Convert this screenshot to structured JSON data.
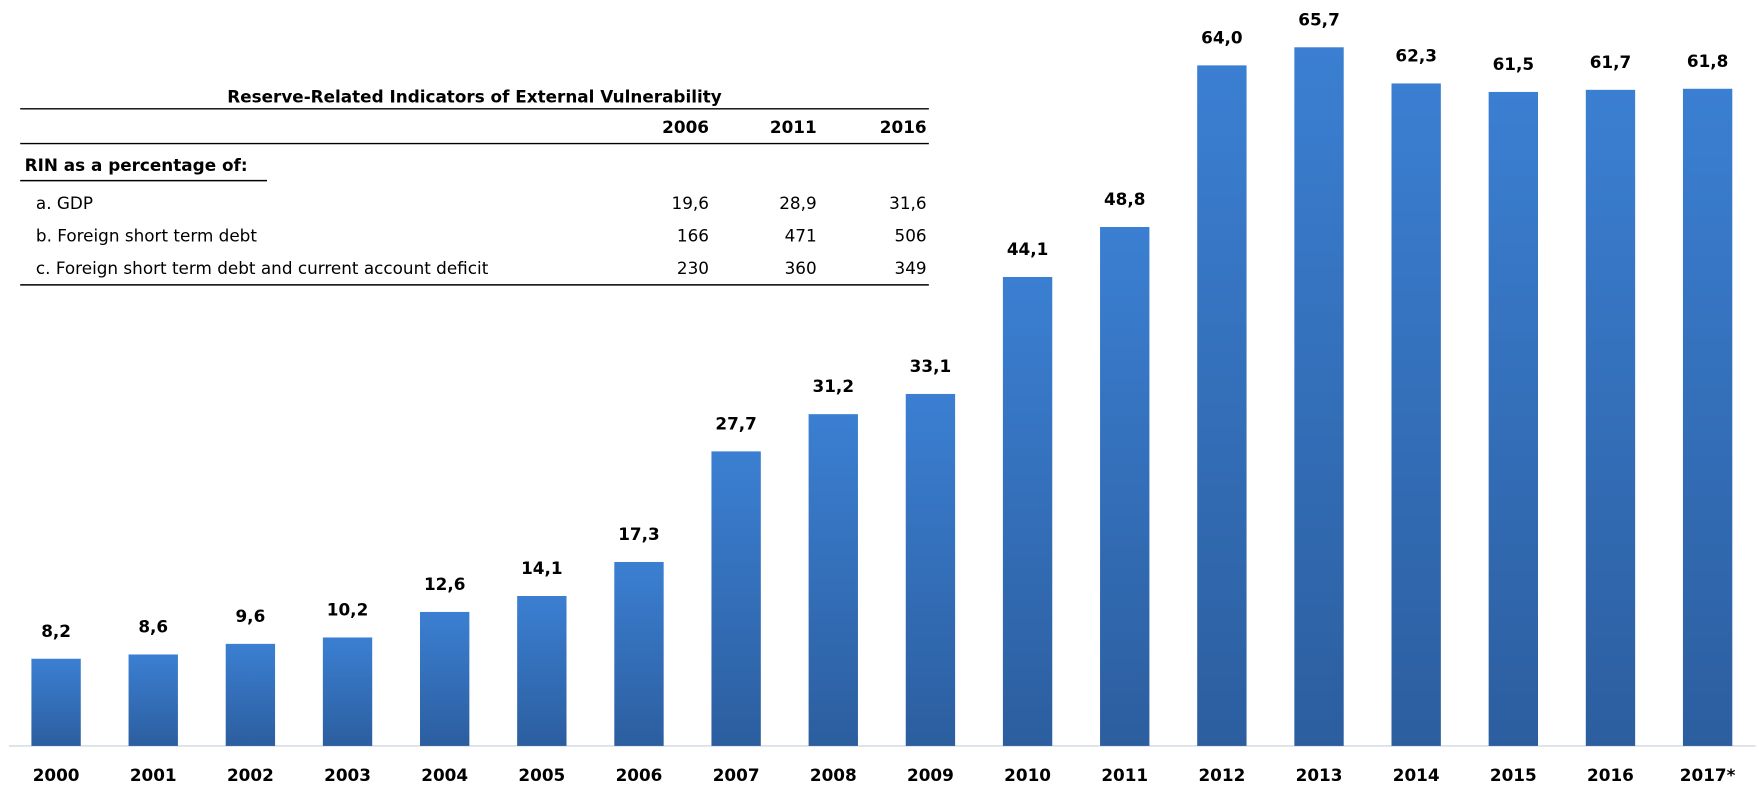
{
  "chart_data": {
    "type": "bar",
    "categories": [
      "2000",
      "2001",
      "2002",
      "2003",
      "2004",
      "2005",
      "2006",
      "2007",
      "2008",
      "2009",
      "2010",
      "2011",
      "2012",
      "2013",
      "2014",
      "2015",
      "2016",
      "2017*"
    ],
    "values": [
      8.2,
      8.6,
      9.6,
      10.2,
      12.6,
      14.1,
      17.3,
      27.7,
      31.2,
      33.1,
      44.1,
      48.8,
      64.0,
      65.7,
      62.3,
      61.5,
      61.7,
      61.8
    ],
    "value_labels": [
      "8,2",
      "8,6",
      "9,6",
      "10,2",
      "12,6",
      "14,1",
      "17,3",
      "27,7",
      "31,2",
      "33,1",
      "44,1",
      "48,8",
      "64,0",
      "65,7",
      "62,3",
      "61,5",
      "61,7",
      "61,8"
    ],
    "color": "#3b7fd2"
  },
  "table": {
    "title": "Reserve-Related Indicators of External Vulnerability",
    "columns": [
      "2006",
      "2011",
      "2016"
    ],
    "section": "RIN as a percentage of:",
    "rows": [
      [
        "a. GDP",
        "19,6",
        "28,9",
        "31,6"
      ],
      [
        "b. Foreign short term debt",
        "166",
        "471",
        "506"
      ],
      [
        "c. Foreign short term debt and current account deficit",
        "230",
        "360",
        "349"
      ]
    ]
  }
}
